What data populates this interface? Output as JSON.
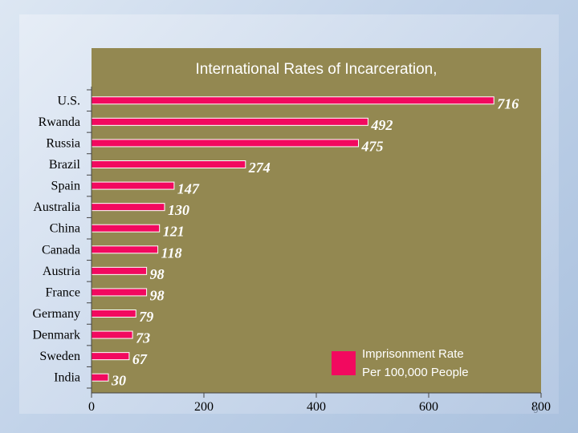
{
  "slide": {
    "number": "9"
  },
  "chart_data": {
    "type": "bar",
    "orientation": "horizontal",
    "title": "International Rates of Incarceration,",
    "categories": [
      "U.S.",
      "Rwanda",
      "Russia",
      "Brazil",
      "Spain",
      "Australia",
      "China",
      "Canada",
      "Austria",
      "France",
      "Germany",
      "Denmark",
      "Sweden",
      "India"
    ],
    "values": [
      716,
      492,
      475,
      274,
      147,
      130,
      121,
      118,
      98,
      98,
      79,
      73,
      67,
      30
    ],
    "xlim": [
      0,
      800
    ],
    "xticks": [
      0,
      200,
      400,
      600,
      800
    ],
    "xlabel": "",
    "ylabel": "",
    "grid": false,
    "legend": {
      "position": "bottom-right",
      "entries": [
        {
          "label": "Imprisonment Rate Per 100,000 People",
          "lines": [
            "Imprisonment Rate",
            "Per 100,000 People"
          ],
          "color": "#f2095f"
        }
      ]
    },
    "colors": {
      "bar": "#f2095f",
      "plot_background": "#938851",
      "value_label": "#ffffff",
      "title": "#ffffff"
    }
  }
}
